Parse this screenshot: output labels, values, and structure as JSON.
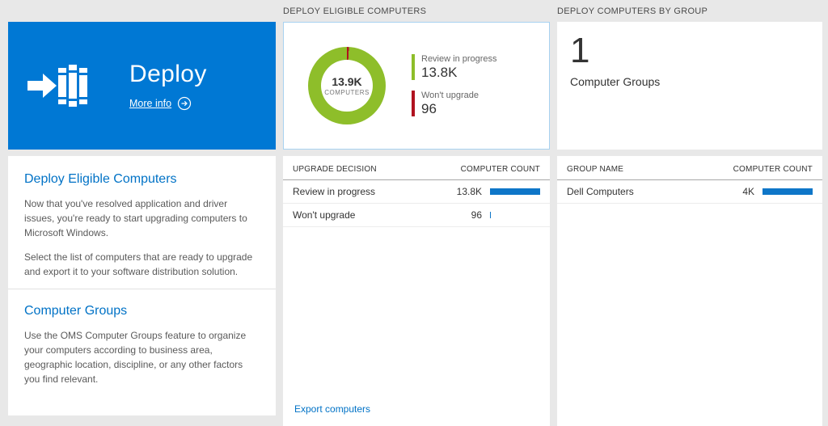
{
  "colors": {
    "page-bg": "#e8e8e8",
    "tile-blue": "#0078d4",
    "accent-blue": "#0072c6",
    "chart-green": "#8ebe2a",
    "status-red": "#b0121f",
    "bar-blue": "#0e76c8"
  },
  "left": {
    "tile_title": "Deploy",
    "more_info": "More info",
    "sections": [
      {
        "heading": "Deploy Eligible Computers",
        "paragraphs": [
          "Now that you've resolved application and driver issues, you're ready to start upgrading computers to Microsoft Windows.",
          "Select the list of computers that are ready to upgrade and export it to your software distribution solution."
        ]
      },
      {
        "heading": "Computer Groups",
        "paragraphs": [
          "Use the OMS Computer Groups feature to organize your computers according to business area, geographic location, discipline, or any other factors you find relevant."
        ]
      }
    ]
  },
  "middle": {
    "header": "DEPLOY ELIGIBLE COMPUTERS",
    "donut": {
      "center_value": "13.9K",
      "center_label": "COMPUTERS",
      "legend": [
        {
          "label": "Review in progress",
          "value": "13.8K"
        },
        {
          "label": "Won't upgrade",
          "value": "96"
        }
      ]
    },
    "table": {
      "col1": "UPGRADE DECISION",
      "col2": "COMPUTER COUNT",
      "rows": [
        {
          "label": "Review in progress",
          "value": "13.8K",
          "bar_pct": 100
        },
        {
          "label": "Won't upgrade",
          "value": "96",
          "bar_pct": 2
        }
      ]
    },
    "export_link": "Export computers"
  },
  "right": {
    "header": "DEPLOY COMPUTERS BY GROUP",
    "tile_value": "1",
    "tile_label": "Computer Groups",
    "table": {
      "col1": "GROUP NAME",
      "col2": "COMPUTER COUNT",
      "rows": [
        {
          "label": "Dell Computers",
          "value": "4K",
          "bar_pct": 100
        }
      ]
    }
  },
  "chart_data": [
    {
      "type": "pie",
      "donut": true,
      "title": "Deploy Eligible Computers",
      "labels": [
        "Review in progress",
        "Won't upgrade"
      ],
      "values": [
        13800,
        96
      ],
      "colors": [
        "#8ebe2a",
        "#b0121f"
      ],
      "center_label": "13.9K COMPUTERS",
      "legend_position": "right"
    },
    {
      "type": "bar",
      "orientation": "horizontal",
      "title": "Upgrade decision",
      "categories": [
        "Review in progress",
        "Won't upgrade"
      ],
      "values": [
        13800,
        96
      ],
      "xlabel": "COMPUTER COUNT"
    },
    {
      "type": "bar",
      "orientation": "horizontal",
      "title": "Computers by group",
      "categories": [
        "Dell Computers"
      ],
      "values": [
        4000
      ],
      "xlabel": "COMPUTER COUNT"
    }
  ]
}
